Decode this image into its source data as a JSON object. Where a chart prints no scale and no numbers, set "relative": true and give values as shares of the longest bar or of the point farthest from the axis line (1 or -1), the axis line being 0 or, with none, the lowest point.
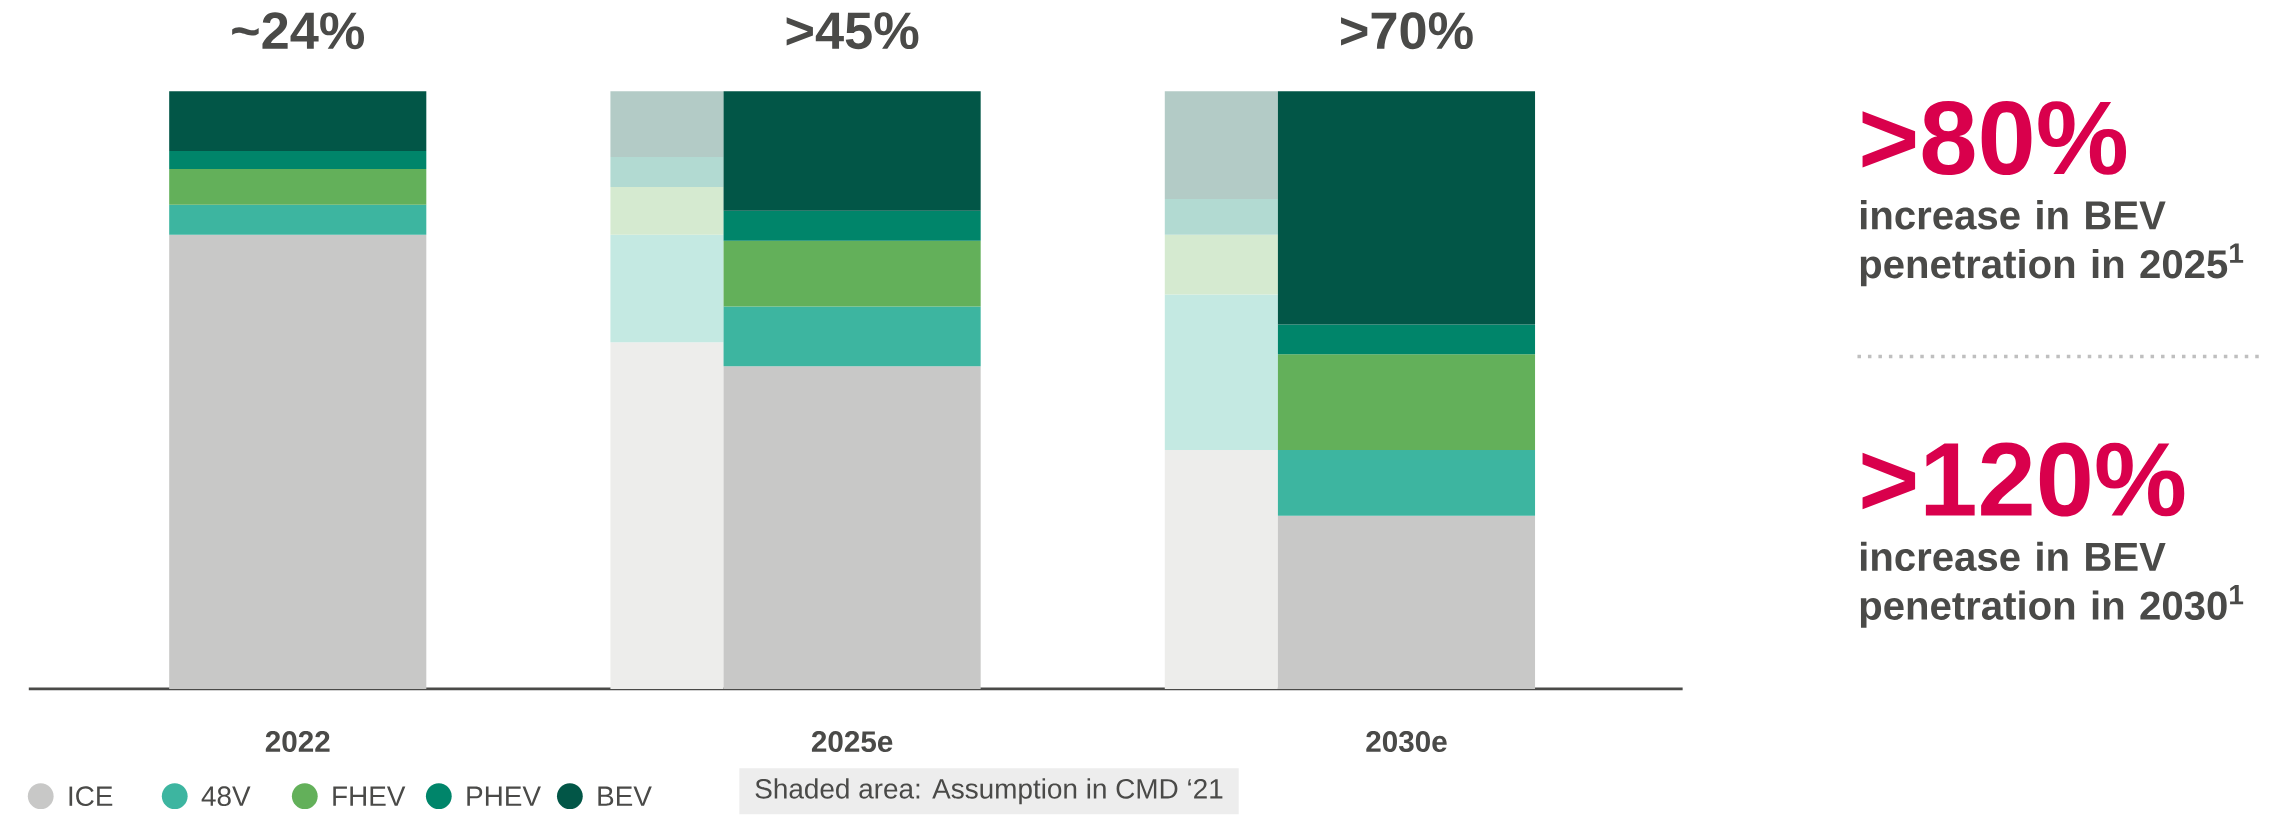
{
  "chart_data": {
    "type": "bar",
    "stacked": true,
    "relative": true,
    "legend": "bottom left",
    "categories": [
      "2022",
      null,
      "2025e",
      null,
      "2030e"
    ],
    "series": [
      {
        "name": "ICE",
        "color": "#c8c8c7",
        "colors": [
          "#c8c8c7",
          "#ededeb",
          "#c8c8c7",
          "#ededeb",
          "#c8c8c7"
        ],
        "values": [
          0.76,
          0.58,
          0.54,
          0.4,
          0.29
        ]
      },
      {
        "name": "48V",
        "color": "#3db5a0",
        "colors": [
          "#3db5a0",
          "#c4e9e2",
          "#3db5a0",
          "#c4e9e2",
          "#3db5a0"
        ],
        "values": [
          0.05,
          0.18,
          0.1,
          0.26,
          0.11
        ]
      },
      {
        "name": "FHEV",
        "color": "#63b05a",
        "colors": [
          "#63b05a",
          "#d5ead0",
          "#63b05a",
          "#d5ead0",
          "#63b05a"
        ],
        "values": [
          0.06,
          0.08,
          0.11,
          0.1,
          0.16
        ]
      },
      {
        "name": "PHEV",
        "color": "#00856a",
        "colors": [
          "#00856a",
          "#b2dad2",
          "#00856a",
          "#b2dad2",
          "#00856a"
        ],
        "values": [
          0.03,
          0.05,
          0.05,
          0.06,
          0.05
        ]
      },
      {
        "name": "BEV",
        "color": "#025647",
        "colors": [
          "#025647",
          "#b3cbc6",
          "#025647",
          "#b3cbc6",
          "#025647"
        ],
        "values": [
          0.1,
          0.11,
          0.2,
          0.18,
          0.39
        ]
      }
    ],
    "annotations": [
      {
        "text": "~24%",
        "x": "2022",
        "y": 1
      },
      {
        "text": ">45%",
        "x": "2025e",
        "y": 1
      },
      {
        "text": ">70%",
        "x": "2030e",
        "y": 1
      },
      ">80%",
      "increase in BEV penetration in 2025$^{1}$",
      ">120%",
      "increase in BEV penetration in 2030$^{1}$",
      "Shaded area: Assumption in CMD ‘21"
    ]
  }
}
